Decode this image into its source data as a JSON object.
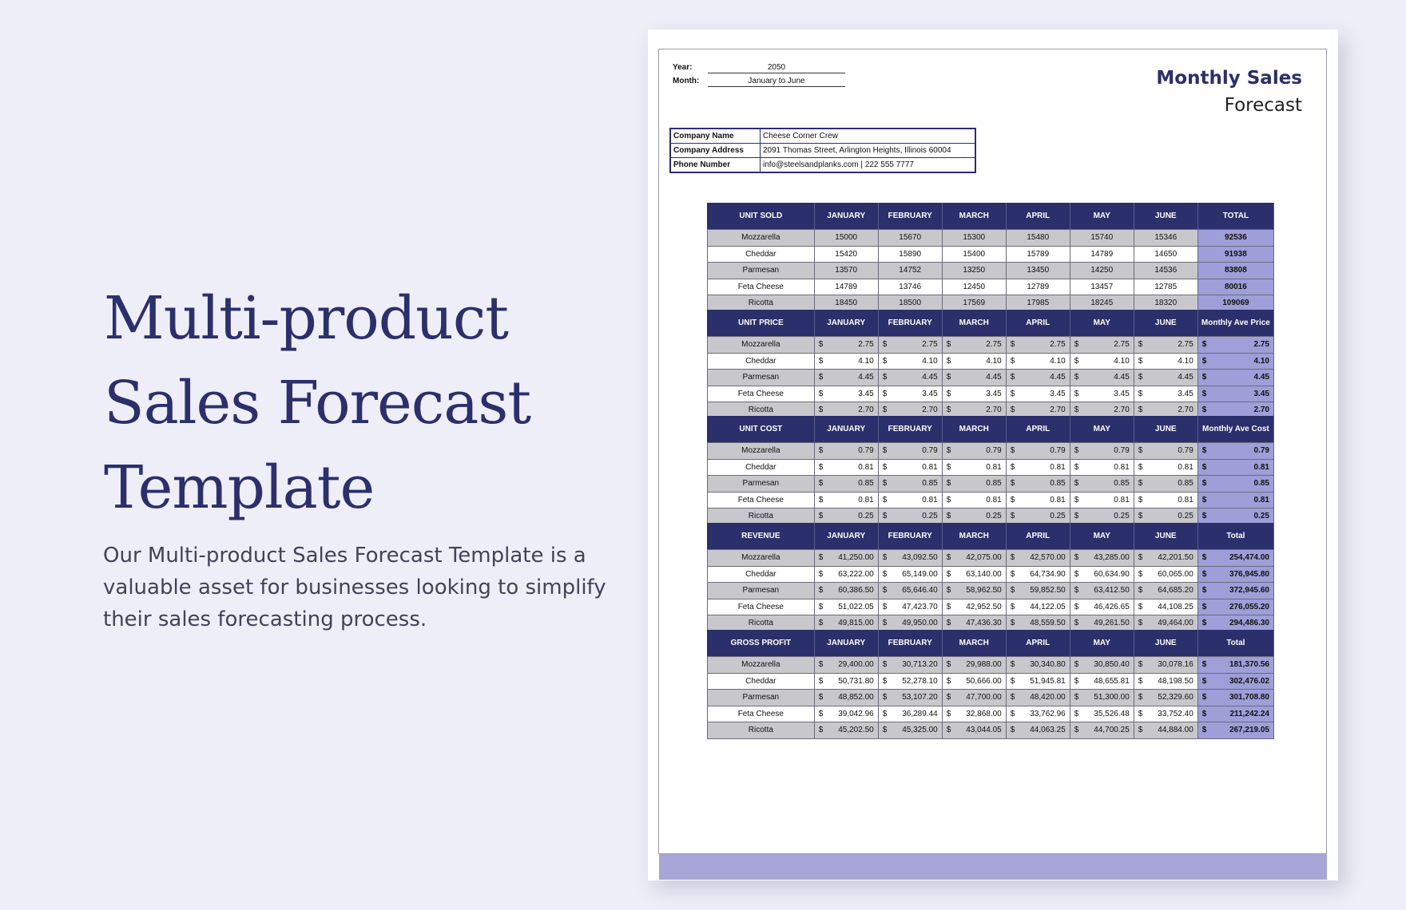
{
  "hero": {
    "title_lines": [
      "Multi-product",
      "Sales Forecast",
      "Template"
    ],
    "description": "Our Multi-product Sales Forecast Template is a valuable asset for businesses looking to simplify their sales forecasting process."
  },
  "doc": {
    "year_label": "Year:",
    "year_value": "2050",
    "month_label": "Month:",
    "month_value": "January to June",
    "title_line1": "Monthly Sales",
    "title_line2": "Forecast",
    "company": {
      "name_label": "Company Name",
      "name_value": "Cheese Corner Crew",
      "address_label": "Company Address",
      "address_value": "2091 Thomas Street, Arlington Heights, Illinois 60004",
      "phone_label": "Phone Number",
      "phone_value": "info@steelsandplanks.com  |  222 555 7777"
    }
  },
  "currency_symbol": "$",
  "months": [
    "JANUARY",
    "FEBRUARY",
    "MARCH",
    "APRIL",
    "MAY",
    "JUNE"
  ],
  "tables": [
    {
      "id": "unit-sold",
      "header": "UNIT SOLD",
      "total_header": "TOTAL",
      "money": false,
      "rows": [
        {
          "name": "Mozzarella",
          "values": [
            "15000",
            "15670",
            "15300",
            "15480",
            "15740",
            "15346"
          ],
          "total": "92536"
        },
        {
          "name": "Cheddar",
          "values": [
            "15420",
            "15890",
            "15400",
            "15789",
            "14789",
            "14650"
          ],
          "total": "91938"
        },
        {
          "name": "Parmesan",
          "values": [
            "13570",
            "14752",
            "13250",
            "13450",
            "14250",
            "14536"
          ],
          "total": "83808"
        },
        {
          "name": "Feta Cheese",
          "values": [
            "14789",
            "13746",
            "12450",
            "12789",
            "13457",
            "12785"
          ],
          "total": "80016"
        },
        {
          "name": "Ricotta",
          "values": [
            "18450",
            "18500",
            "17569",
            "17985",
            "18245",
            "18320"
          ],
          "total": "109069"
        }
      ]
    },
    {
      "id": "unit-price",
      "header": "UNIT PRICE",
      "total_header": "Monthly Ave Price",
      "money": true,
      "rows": [
        {
          "name": "Mozzarella",
          "values": [
            "2.75",
            "2.75",
            "2.75",
            "2.75",
            "2.75",
            "2.75"
          ],
          "total": "2.75"
        },
        {
          "name": "Cheddar",
          "values": [
            "4.10",
            "4.10",
            "4.10",
            "4.10",
            "4.10",
            "4.10"
          ],
          "total": "4.10"
        },
        {
          "name": "Parmesan",
          "values": [
            "4.45",
            "4.45",
            "4.45",
            "4.45",
            "4.45",
            "4.45"
          ],
          "total": "4.45"
        },
        {
          "name": "Feta Cheese",
          "values": [
            "3.45",
            "3.45",
            "3.45",
            "3.45",
            "3.45",
            "3.45"
          ],
          "total": "3.45"
        },
        {
          "name": "Ricotta",
          "values": [
            "2.70",
            "2.70",
            "2.70",
            "2.70",
            "2.70",
            "2.70"
          ],
          "total": "2.70"
        }
      ]
    },
    {
      "id": "unit-cost",
      "header": "UNIT COST",
      "total_header": "Monthly Ave Cost",
      "money": true,
      "rows": [
        {
          "name": "Mozzarella",
          "values": [
            "0.79",
            "0.79",
            "0.79",
            "0.79",
            "0.79",
            "0.79"
          ],
          "total": "0.79"
        },
        {
          "name": "Cheddar",
          "values": [
            "0.81",
            "0.81",
            "0.81",
            "0.81",
            "0.81",
            "0.81"
          ],
          "total": "0.81"
        },
        {
          "name": "Parmesan",
          "values": [
            "0.85",
            "0.85",
            "0.85",
            "0.85",
            "0.85",
            "0.85"
          ],
          "total": "0.85"
        },
        {
          "name": "Feta Cheese",
          "values": [
            "0.81",
            "0.81",
            "0.81",
            "0.81",
            "0.81",
            "0.81"
          ],
          "total": "0.81"
        },
        {
          "name": "Ricotta",
          "values": [
            "0.25",
            "0.25",
            "0.25",
            "0.25",
            "0.25",
            "0.25"
          ],
          "total": "0.25"
        }
      ]
    },
    {
      "id": "revenue",
      "header": "REVENUE",
      "total_header": "Total",
      "money": true,
      "rows": [
        {
          "name": "Mozzarella",
          "values": [
            "41,250.00",
            "43,092.50",
            "42,075.00",
            "42,570.00",
            "43,285.00",
            "42,201.50"
          ],
          "total": "254,474.00"
        },
        {
          "name": "Cheddar",
          "values": [
            "63,222.00",
            "65,149.00",
            "63,140.00",
            "64,734.90",
            "60,634.90",
            "60,065.00"
          ],
          "total": "376,945.80"
        },
        {
          "name": "Parmesan",
          "values": [
            "60,386.50",
            "65,646.40",
            "58,962.50",
            "59,852.50",
            "63,412.50",
            "64,685.20"
          ],
          "total": "372,945.60"
        },
        {
          "name": "Feta Cheese",
          "values": [
            "51,022.05",
            "47,423.70",
            "42,952.50",
            "44,122.05",
            "46,426.65",
            "44,108.25"
          ],
          "total": "276,055.20"
        },
        {
          "name": "Ricotta",
          "values": [
            "49,815.00",
            "49,950.00",
            "47,436.30",
            "48,559.50",
            "49,261.50",
            "49,464.00"
          ],
          "total": "294,486.30"
        }
      ]
    },
    {
      "id": "gross-profit",
      "header": "GROSS PROFIT",
      "total_header": "Total",
      "money": true,
      "rows": [
        {
          "name": "Mozzarella",
          "values": [
            "29,400.00",
            "30,713.20",
            "29,988.00",
            "30,340.80",
            "30,850.40",
            "30,078.16"
          ],
          "total": "181,370.56"
        },
        {
          "name": "Cheddar",
          "values": [
            "50,731.80",
            "52,278.10",
            "50,666.00",
            "51,945.81",
            "48,655.81",
            "48,198.50"
          ],
          "total": "302,476.02"
        },
        {
          "name": "Parmesan",
          "values": [
            "48,852.00",
            "53,107.20",
            "47,700.00",
            "48,420.00",
            "51,300.00",
            "52,329.60"
          ],
          "total": "301,708.80"
        },
        {
          "name": "Feta Cheese",
          "values": [
            "39,042.96",
            "36,289.44",
            "32,868.00",
            "33,762.96",
            "35,526.48",
            "33,752.40"
          ],
          "total": "211,242.24"
        },
        {
          "name": "Ricotta",
          "values": [
            "45,202.50",
            "45,325.00",
            "43,044.05",
            "44,063.25",
            "44,700.25",
            "44,884.00"
          ],
          "total": "267,219.05"
        }
      ]
    }
  ],
  "colors": {
    "navy": "#2b2f6b",
    "total_fill": "#9e9ed8",
    "row_gray": "#c8c8cc",
    "page_bg": "#eeeef8",
    "footer_band": "#a7a6d6"
  }
}
